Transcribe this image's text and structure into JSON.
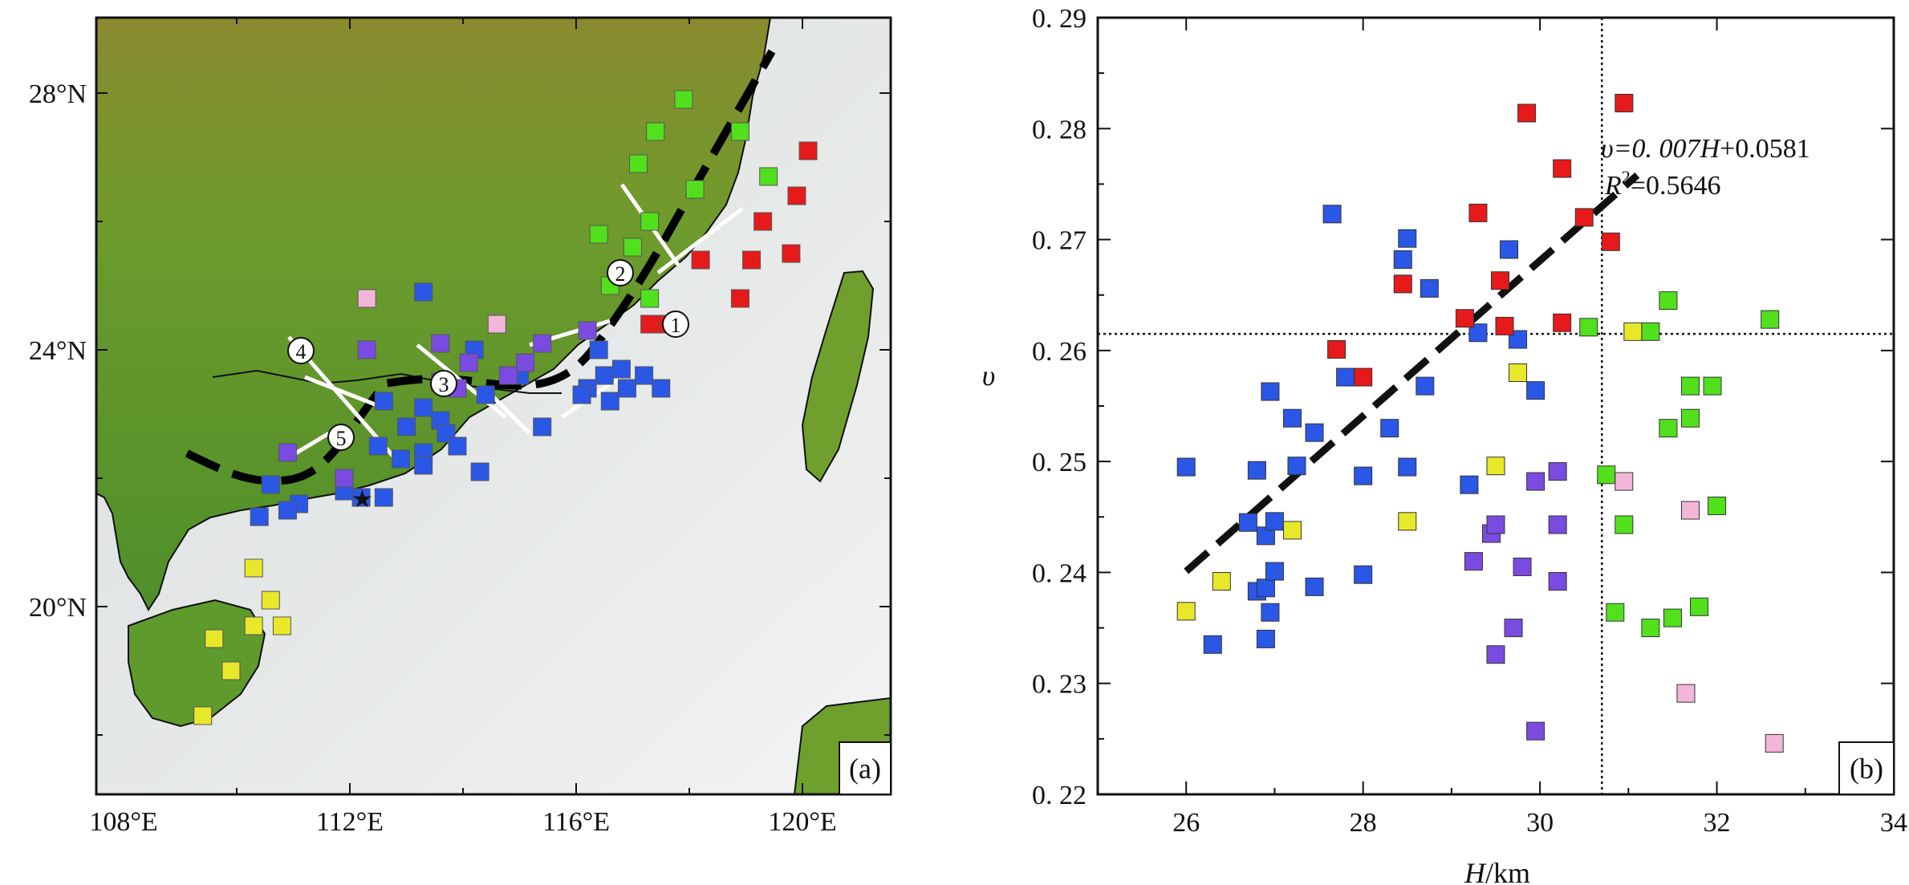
{
  "panel_a": {
    "tag": "(a)",
    "lat_labels": [
      "28°N",
      "24°N",
      "20°N"
    ],
    "lon_labels": [
      "108°E",
      "112°E",
      "116°E",
      "120°E"
    ],
    "profile_labels": [
      "1",
      "2",
      "3",
      "4",
      "5"
    ],
    "colors": {
      "land": "#6c9a2c",
      "sea": "#e9ecec",
      "coastline": "#101010",
      "boundary_line": "#000000",
      "profile_line": "#ffffff"
    },
    "stations": [
      {
        "lon": 117.9,
        "lat": 27.9,
        "color": "green"
      },
      {
        "lon": 117.4,
        "lat": 27.4,
        "color": "green"
      },
      {
        "lon": 118.9,
        "lat": 27.4,
        "color": "green"
      },
      {
        "lon": 117.1,
        "lat": 26.9,
        "color": "green"
      },
      {
        "lon": 119.4,
        "lat": 26.7,
        "color": "green"
      },
      {
        "lon": 118.1,
        "lat": 26.5,
        "color": "green"
      },
      {
        "lon": 117.3,
        "lat": 26.0,
        "color": "green"
      },
      {
        "lon": 116.4,
        "lat": 25.8,
        "color": "green"
      },
      {
        "lon": 117.0,
        "lat": 25.6,
        "color": "green"
      },
      {
        "lon": 116.6,
        "lat": 25.0,
        "color": "green"
      },
      {
        "lon": 117.3,
        "lat": 24.8,
        "color": "green"
      },
      {
        "lon": 120.1,
        "lat": 27.1,
        "color": "red"
      },
      {
        "lon": 119.9,
        "lat": 26.4,
        "color": "red"
      },
      {
        "lon": 119.3,
        "lat": 26.0,
        "color": "red"
      },
      {
        "lon": 119.8,
        "lat": 25.5,
        "color": "red"
      },
      {
        "lon": 118.2,
        "lat": 25.4,
        "color": "red"
      },
      {
        "lon": 119.1,
        "lat": 25.4,
        "color": "red"
      },
      {
        "lon": 118.9,
        "lat": 24.8,
        "color": "red"
      },
      {
        "lon": 117.6,
        "lat": 24.4,
        "color": "red"
      },
      {
        "lon": 117.3,
        "lat": 24.4,
        "color": "red"
      },
      {
        "lon": 112.3,
        "lat": 24.8,
        "color": "pink"
      },
      {
        "lon": 114.6,
        "lat": 24.4,
        "color": "pink"
      },
      {
        "lon": 113.3,
        "lat": 24.9,
        "color": "blue"
      },
      {
        "lon": 114.2,
        "lat": 24.0,
        "color": "blue"
      },
      {
        "lon": 116.4,
        "lat": 24.0,
        "color": "blue"
      },
      {
        "lon": 116.8,
        "lat": 23.7,
        "color": "blue"
      },
      {
        "lon": 116.5,
        "lat": 23.6,
        "color": "blue"
      },
      {
        "lon": 117.2,
        "lat": 23.6,
        "color": "blue"
      },
      {
        "lon": 115.0,
        "lat": 23.6,
        "color": "blue"
      },
      {
        "lon": 116.2,
        "lat": 23.4,
        "color": "blue"
      },
      {
        "lon": 116.9,
        "lat": 23.4,
        "color": "blue"
      },
      {
        "lon": 117.5,
        "lat": 23.4,
        "color": "blue"
      },
      {
        "lon": 114.4,
        "lat": 23.3,
        "color": "blue"
      },
      {
        "lon": 116.1,
        "lat": 23.3,
        "color": "blue"
      },
      {
        "lon": 116.6,
        "lat": 23.2,
        "color": "blue"
      },
      {
        "lon": 112.6,
        "lat": 23.2,
        "color": "blue"
      },
      {
        "lon": 113.3,
        "lat": 23.1,
        "color": "blue"
      },
      {
        "lon": 113.6,
        "lat": 22.9,
        "color": "blue"
      },
      {
        "lon": 113.0,
        "lat": 22.8,
        "color": "blue"
      },
      {
        "lon": 115.4,
        "lat": 22.8,
        "color": "blue"
      },
      {
        "lon": 113.7,
        "lat": 22.7,
        "color": "blue"
      },
      {
        "lon": 112.5,
        "lat": 22.5,
        "color": "blue"
      },
      {
        "lon": 113.3,
        "lat": 22.4,
        "color": "blue"
      },
      {
        "lon": 113.9,
        "lat": 22.5,
        "color": "blue"
      },
      {
        "lon": 112.9,
        "lat": 22.3,
        "color": "blue"
      },
      {
        "lon": 113.3,
        "lat": 22.2,
        "color": "blue"
      },
      {
        "lon": 114.3,
        "lat": 22.1,
        "color": "blue"
      },
      {
        "lon": 110.6,
        "lat": 21.9,
        "color": "blue"
      },
      {
        "lon": 111.9,
        "lat": 21.8,
        "color": "blue"
      },
      {
        "lon": 112.2,
        "lat": 21.7,
        "color": "blue"
      },
      {
        "lon": 111.1,
        "lat": 21.6,
        "color": "blue"
      },
      {
        "lon": 110.9,
        "lat": 21.5,
        "color": "blue"
      },
      {
        "lon": 110.4,
        "lat": 21.4,
        "color": "blue"
      },
      {
        "lon": 112.6,
        "lat": 21.7,
        "color": "blue"
      },
      {
        "lon": 113.6,
        "lat": 24.1,
        "color": "purple"
      },
      {
        "lon": 116.2,
        "lat": 24.3,
        "color": "purple"
      },
      {
        "lon": 112.3,
        "lat": 24.0,
        "color": "purple"
      },
      {
        "lon": 114.1,
        "lat": 23.8,
        "color": "purple"
      },
      {
        "lon": 115.1,
        "lat": 23.8,
        "color": "purple"
      },
      {
        "lon": 114.8,
        "lat": 23.6,
        "color": "purple"
      },
      {
        "lon": 115.4,
        "lat": 24.1,
        "color": "purple"
      },
      {
        "lon": 113.9,
        "lat": 23.4,
        "color": "purple"
      },
      {
        "lon": 113.6,
        "lat": 23.5,
        "color": "purple"
      },
      {
        "lon": 110.9,
        "lat": 22.4,
        "color": "purple"
      },
      {
        "lon": 111.9,
        "lat": 22.0,
        "color": "purple"
      },
      {
        "lon": 110.3,
        "lat": 20.6,
        "color": "yellow"
      },
      {
        "lon": 110.6,
        "lat": 20.1,
        "color": "yellow"
      },
      {
        "lon": 110.3,
        "lat": 19.7,
        "color": "yellow"
      },
      {
        "lon": 110.8,
        "lat": 19.7,
        "color": "yellow"
      },
      {
        "lon": 109.6,
        "lat": 19.5,
        "color": "yellow"
      },
      {
        "lon": 109.9,
        "lat": 19.0,
        "color": "yellow"
      },
      {
        "lon": 109.4,
        "lat": 18.3,
        "color": "yellow"
      }
    ]
  },
  "panel_b": {
    "tag": "(b)",
    "equation_prefix": "υ=0. 007",
    "equation_var": "H",
    "equation_suffix": "+0.0581",
    "r2_base": "R",
    "r2_exp": "2",
    "r2_value": "=0.5646",
    "ylabel": "υ",
    "xlabel_var": "H",
    "xlabel_unit": "/km"
  },
  "chart_data": {
    "type": "scatter",
    "title": "",
    "xlabel": "H/km",
    "ylabel": "υ",
    "xlim": [
      25,
      34
    ],
    "ylim": [
      0.22,
      0.29
    ],
    "x_ticks": [
      26,
      28,
      30,
      32,
      34
    ],
    "y_ticks": [
      0.22,
      0.23,
      0.24,
      0.25,
      0.26,
      0.27,
      0.28,
      0.29
    ],
    "y_tick_labels": [
      "0. 22",
      "0. 23",
      "0. 24",
      "0. 25",
      "0. 26",
      "0. 27",
      "0. 28",
      "0. 29"
    ],
    "grid": false,
    "reference_lines": {
      "vertical_x": 30.7,
      "horizontal_y": 0.2615
    },
    "fit_line": {
      "slope": 0.007,
      "intercept": 0.0581,
      "x_range": [
        26.0,
        31.1
      ],
      "r2": 0.5646
    },
    "color_map": {
      "blue": "#2a57e6",
      "red": "#e61a1a",
      "green": "#52e01c",
      "yellow": "#e8e82a",
      "pink": "#f4b6d8",
      "purple": "#7a4be0"
    },
    "series": [
      {
        "color": "blue",
        "points": [
          [
            26.0,
            0.2495
          ],
          [
            26.3,
            0.2335
          ],
          [
            26.7,
            0.2445
          ],
          [
            26.8,
            0.2383
          ],
          [
            26.8,
            0.2492
          ],
          [
            26.9,
            0.234
          ],
          [
            26.9,
            0.2433
          ],
          [
            26.9,
            0.2386
          ],
          [
            26.95,
            0.2563
          ],
          [
            26.95,
            0.2364
          ],
          [
            27.0,
            0.2401
          ],
          [
            27.0,
            0.2446
          ],
          [
            27.2,
            0.2539
          ],
          [
            27.25,
            0.2496
          ],
          [
            27.45,
            0.2526
          ],
          [
            27.45,
            0.2387
          ],
          [
            27.65,
            0.2723
          ],
          [
            27.8,
            0.2576
          ],
          [
            28.0,
            0.2487
          ],
          [
            28.0,
            0.2398
          ],
          [
            28.3,
            0.253
          ],
          [
            28.45,
            0.2682
          ],
          [
            28.5,
            0.2701
          ],
          [
            28.5,
            0.2495
          ],
          [
            28.7,
            0.2568
          ],
          [
            28.75,
            0.2656
          ],
          [
            29.2,
            0.2479
          ],
          [
            29.3,
            0.2616
          ],
          [
            29.65,
            0.2691
          ],
          [
            29.75,
            0.261
          ],
          [
            29.95,
            0.2564
          ]
        ]
      },
      {
        "color": "red",
        "points": [
          [
            27.7,
            0.2601
          ],
          [
            28.0,
            0.2576
          ],
          [
            28.45,
            0.266
          ],
          [
            29.15,
            0.2629
          ],
          [
            29.3,
            0.2724
          ],
          [
            29.55,
            0.2663
          ],
          [
            29.6,
            0.2622
          ],
          [
            29.85,
            0.2814
          ],
          [
            30.25,
            0.2764
          ],
          [
            30.25,
            0.2625
          ],
          [
            30.5,
            0.272
          ],
          [
            30.8,
            0.2698
          ],
          [
            30.95,
            0.2823
          ]
        ]
      },
      {
        "color": "green",
        "points": [
          [
            30.55,
            0.2621
          ],
          [
            30.75,
            0.2488
          ],
          [
            30.85,
            0.2364
          ],
          [
            30.95,
            0.2443
          ],
          [
            31.25,
            0.2617
          ],
          [
            31.25,
            0.235
          ],
          [
            31.45,
            0.2645
          ],
          [
            31.45,
            0.253
          ],
          [
            31.5,
            0.2359
          ],
          [
            31.7,
            0.2568
          ],
          [
            31.7,
            0.2539
          ],
          [
            31.8,
            0.2369
          ],
          [
            31.95,
            0.2568
          ],
          [
            32.0,
            0.246
          ],
          [
            32.6,
            0.2628
          ]
        ]
      },
      {
        "color": "yellow",
        "points": [
          [
            26.0,
            0.2365
          ],
          [
            26.4,
            0.2392
          ],
          [
            27.2,
            0.2438
          ],
          [
            28.5,
            0.2446
          ],
          [
            29.75,
            0.258
          ],
          [
            29.5,
            0.2496
          ],
          [
            31.05,
            0.2617
          ]
        ]
      },
      {
        "color": "pink",
        "points": [
          [
            30.95,
            0.2482
          ],
          [
            31.7,
            0.2456
          ],
          [
            31.65,
            0.2291
          ],
          [
            32.65,
            0.2246
          ]
        ]
      },
      {
        "color": "purple",
        "points": [
          [
            29.25,
            0.241
          ],
          [
            29.45,
            0.2435
          ],
          [
            29.5,
            0.2443
          ],
          [
            29.5,
            0.2326
          ],
          [
            29.7,
            0.235
          ],
          [
            29.8,
            0.2405
          ],
          [
            29.95,
            0.2482
          ],
          [
            29.95,
            0.2257
          ],
          [
            30.2,
            0.2491
          ],
          [
            30.2,
            0.2443
          ],
          [
            30.2,
            0.2392
          ]
        ]
      }
    ]
  }
}
